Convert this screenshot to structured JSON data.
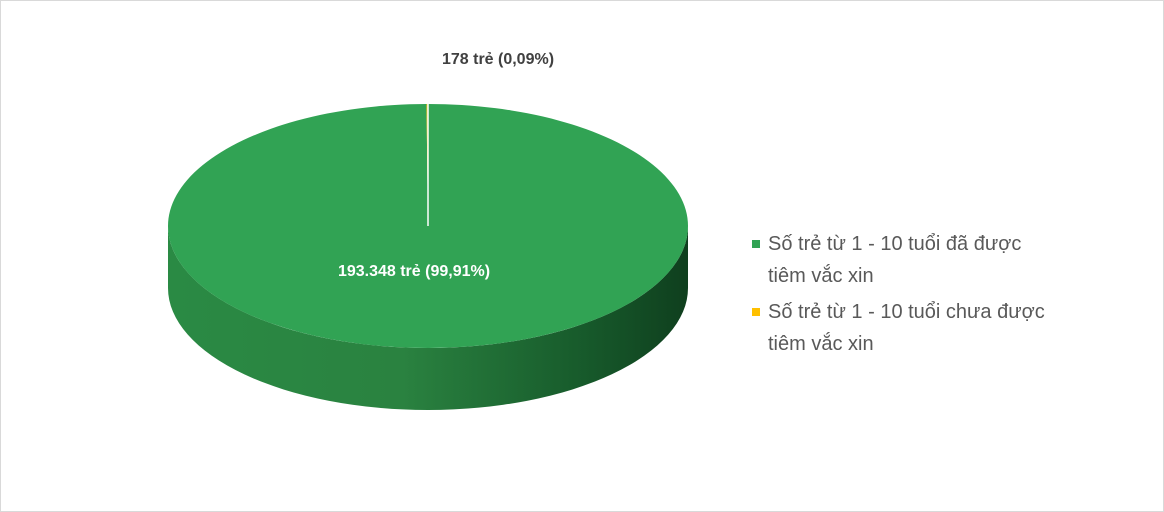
{
  "chart_data": {
    "type": "pie",
    "style": "3d",
    "slices": [
      {
        "label": "Số trẻ từ 1 - 10 tuổi đã được tiêm vắc xin",
        "value": 193348,
        "percent": 99.91,
        "data_label": "193.348 trẻ (99,91%)",
        "color": "#31a354"
      },
      {
        "label": "Số trẻ từ 1 - 10 tuổi chưa được tiêm vắc xin",
        "value": 178,
        "percent": 0.09,
        "data_label": "178 trẻ (0,09%)",
        "color": "#ffc000"
      }
    ],
    "legend": {
      "position": "right",
      "entries": [
        {
          "line1": "Số trẻ từ 1 - 10 tuổi đã được",
          "line2": "tiêm vắc xin",
          "color": "#31a354"
        },
        {
          "line1": "Số trẻ từ 1 - 10 tuổi chưa được",
          "line2": "tiêm vắc xin",
          "color": "#ffc000"
        }
      ]
    }
  }
}
